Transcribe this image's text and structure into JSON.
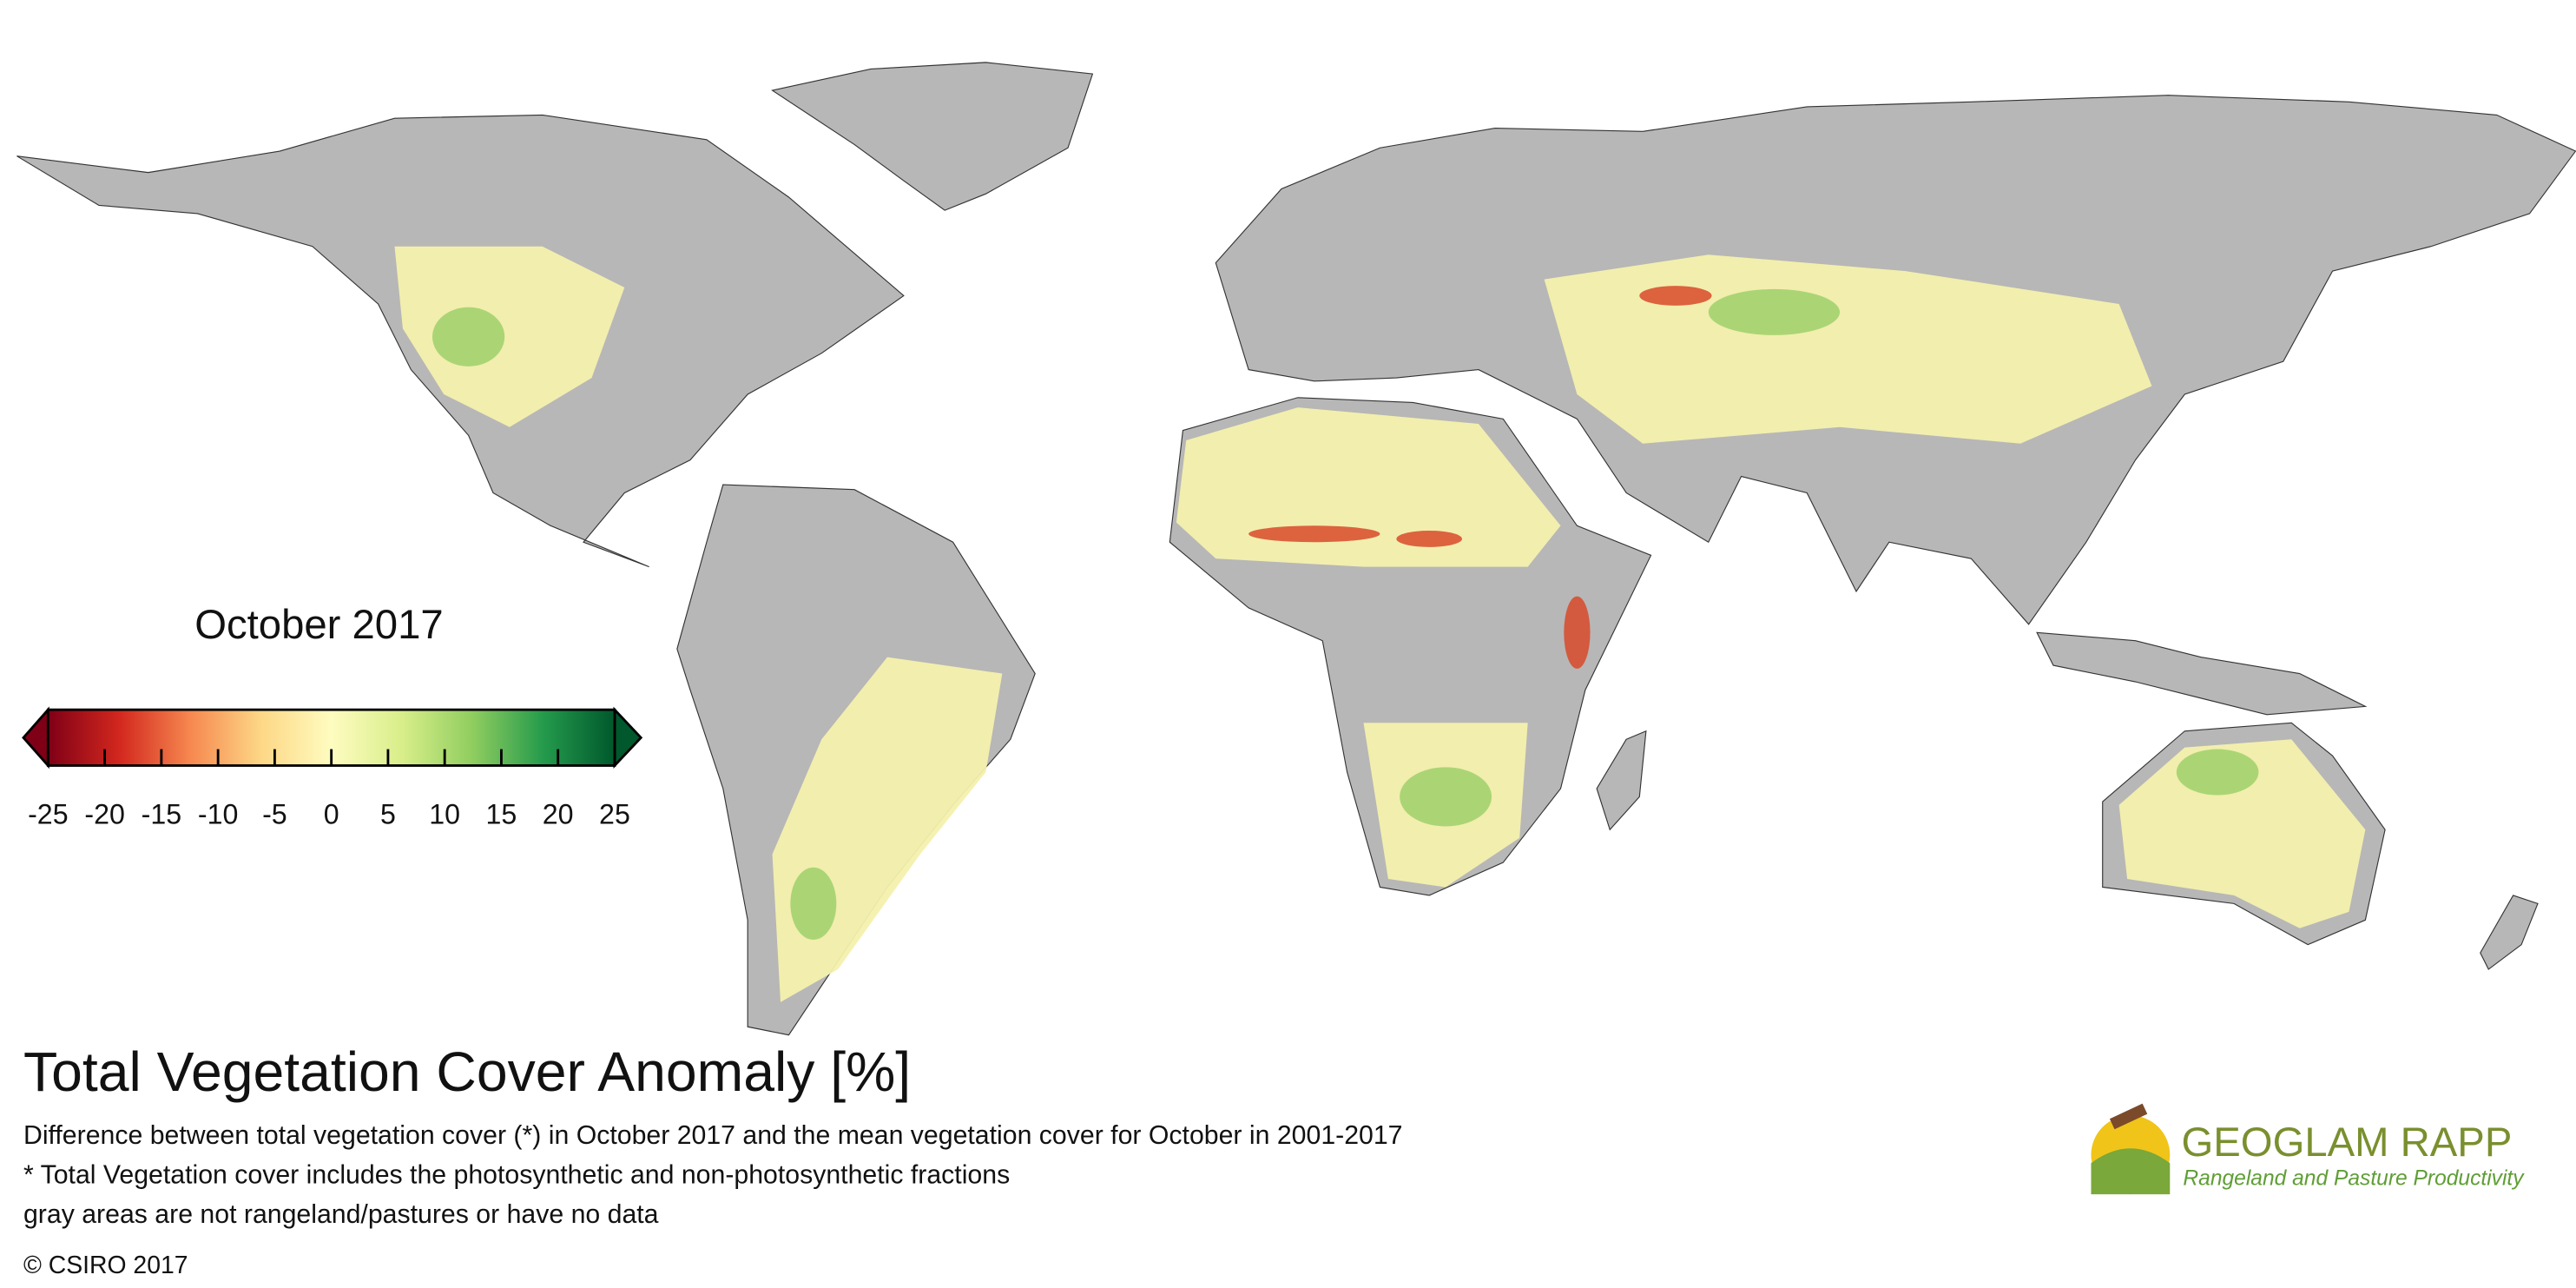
{
  "title": "Total Vegetation Cover Anomaly [%]",
  "description": [
    "Difference between total vegetation cover (*) in October 2017 and the mean vegetation cover for October in 2001-2017",
    "* Total Vegetation cover includes the photosynthetic and non-photosynthetic fractions",
    "gray areas are not rangeland/pastures or have no data"
  ],
  "copyright": "© CSIRO 2017",
  "legend": {
    "title": "October 2017",
    "range": [
      -25,
      25
    ],
    "ticks": [
      -25,
      -20,
      -15,
      -10,
      -5,
      0,
      5,
      10,
      15,
      20,
      25
    ],
    "colors": [
      "#7f0016",
      "#d2271e",
      "#f6874f",
      "#fdd785",
      "#fefcc0",
      "#d8ee8a",
      "#8fcd5f",
      "#249a4c",
      "#00582c"
    ]
  },
  "logo": {
    "name": "GEOGLAM RAPP",
    "tagline": "Rangeland and Pasture Productivity"
  }
}
